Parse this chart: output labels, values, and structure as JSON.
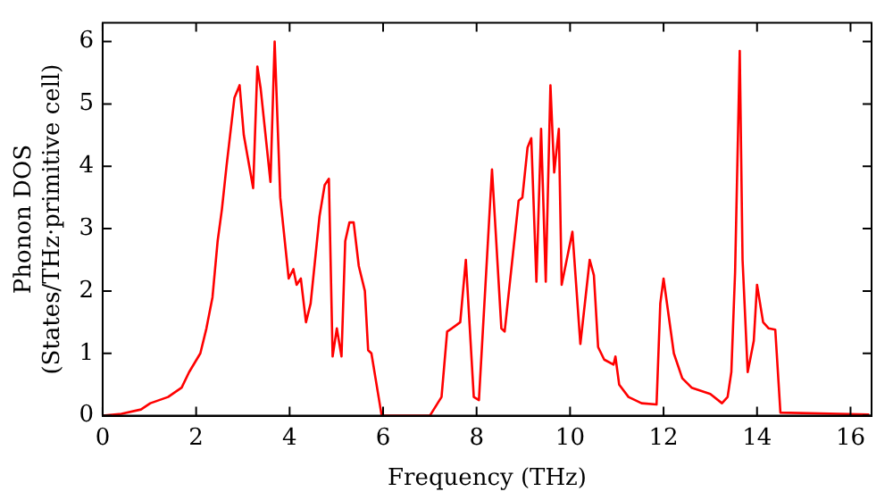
{
  "chart_data": {
    "type": "line",
    "xlabel": "Frequency (THz)",
    "ylabel": "Phonon DOS\n(States/THz·primitive cell)",
    "xlim": [
      0,
      16.45
    ],
    "ylim": [
      0,
      6.3
    ],
    "xticks": [
      0,
      2,
      4,
      6,
      8,
      10,
      12,
      14,
      16
    ],
    "yticks": [
      0,
      1,
      2,
      3,
      4,
      5,
      6
    ],
    "grid": false,
    "legend": false,
    "marker": "none",
    "line_style": "solid",
    "series": [
      {
        "color": "#ff0000",
        "x": [
          0,
          0.4,
          0.82,
          1.02,
          1.4,
          1.69,
          1.85,
          2.09,
          2.22,
          2.35,
          2.46,
          2.55,
          2.65,
          2.82,
          2.93,
          3.02,
          3.22,
          3.31,
          3.38,
          3.59,
          3.68,
          3.8,
          3.98,
          4.08,
          4.15,
          4.24,
          4.35,
          4.45,
          4.64,
          4.75,
          4.84,
          4.92,
          5.01,
          5.11,
          5.19,
          5.28,
          5.37,
          5.48,
          5.61,
          5.68,
          5.75,
          5.97,
          7.0,
          7.25,
          7.37,
          7.47,
          7.65,
          7.77,
          7.94,
          8.05,
          8.33,
          8.53,
          8.6,
          8.9,
          8.98,
          9.09,
          9.17,
          9.28,
          9.38,
          9.48,
          9.58,
          9.66,
          9.76,
          9.82,
          10.05,
          10.22,
          10.42,
          10.51,
          10.6,
          10.73,
          10.93,
          10.97,
          11.05,
          11.25,
          11.53,
          11.85,
          11.93,
          12.0,
          12.22,
          12.4,
          12.6,
          13.0,
          13.25,
          13.37,
          13.45,
          13.53,
          13.63,
          13.69,
          13.8,
          13.93,
          14.0,
          14.13,
          14.25,
          14.39,
          14.5,
          16.4
        ],
        "values": [
          0,
          0.03,
          0.1,
          0.2,
          0.3,
          0.45,
          0.7,
          1.0,
          1.4,
          1.9,
          2.8,
          3.3,
          4.0,
          5.1,
          5.3,
          4.5,
          3.65,
          5.6,
          5.25,
          3.75,
          6.0,
          3.5,
          2.2,
          2.35,
          2.1,
          2.2,
          1.5,
          1.8,
          3.2,
          3.7,
          3.8,
          0.95,
          1.4,
          0.95,
          2.8,
          3.1,
          3.1,
          2.4,
          2.0,
          1.05,
          1.0,
          0,
          0,
          0.3,
          1.35,
          1.4,
          1.5,
          2.5,
          0.3,
          0.25,
          3.95,
          1.4,
          1.35,
          3.45,
          3.5,
          4.3,
          4.45,
          2.15,
          4.6,
          2.15,
          5.3,
          3.9,
          4.6,
          2.1,
          2.95,
          1.15,
          2.5,
          2.25,
          1.1,
          0.9,
          0.82,
          0.95,
          0.5,
          0.3,
          0.2,
          0.18,
          1.8,
          2.2,
          1.0,
          0.6,
          0.45,
          0.35,
          0.2,
          0.3,
          0.7,
          2.3,
          5.85,
          2.5,
          0.7,
          1.2,
          2.1,
          1.5,
          1.4,
          1.38,
          0.05,
          0.02
        ]
      }
    ]
  }
}
